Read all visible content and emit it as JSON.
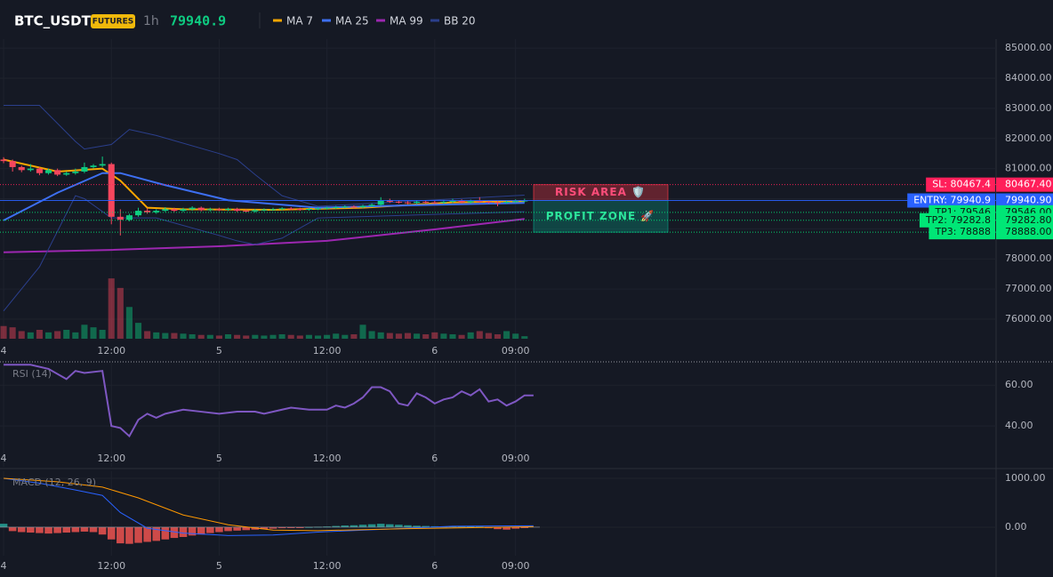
{
  "header": {
    "symbol": "BTC_USDT",
    "badge": "FUTURES",
    "interval": "1h",
    "price": "79940.9"
  },
  "chart_data": [
    {
      "type": "candlestick",
      "x": [
        0,
        1,
        2,
        3,
        4,
        5,
        6,
        7,
        8,
        9,
        10,
        11,
        12,
        13,
        14,
        15,
        16,
        17,
        18,
        19,
        20,
        21,
        22,
        23,
        24,
        25,
        26,
        27,
        28,
        29,
        30,
        31,
        32,
        33,
        34,
        35,
        36,
        37,
        38,
        39,
        40,
        41,
        42,
        43,
        44,
        45,
        46,
        47,
        48,
        49,
        50,
        51,
        52,
        53,
        54,
        55,
        56,
        57,
        58
      ],
      "open": [
        81300,
        81250,
        81050,
        80950,
        81000,
        80850,
        80950,
        80800,
        80850,
        80900,
        81050,
        81100,
        81150,
        79400,
        79300,
        79450,
        79600,
        79550,
        79600,
        79650,
        79600,
        79650,
        79700,
        79620,
        79650,
        79630,
        79660,
        79600,
        79580,
        79620,
        79640,
        79650,
        79680,
        79660,
        79640,
        79660,
        79680,
        79700,
        79720,
        79740,
        79720,
        79760,
        79800,
        79950,
        79900,
        79880,
        79860,
        79900,
        79880,
        79870,
        79900,
        79930,
        79880,
        79920,
        79900,
        79880,
        79870,
        79900,
        79920
      ],
      "high": [
        81380,
        81300,
        81100,
        81150,
        81050,
        81000,
        81000,
        80900,
        81000,
        81200,
        81150,
        81400,
        81200,
        79650,
        79500,
        79700,
        79680,
        79650,
        79720,
        79700,
        79700,
        79750,
        79740,
        79700,
        79700,
        79700,
        79700,
        79650,
        79660,
        79680,
        79700,
        79720,
        79720,
        79700,
        79700,
        79720,
        79740,
        79760,
        79780,
        79780,
        79800,
        79850,
        80050,
        80000,
        79950,
        79920,
        79950,
        79940,
        79930,
        79960,
        80000,
        79980,
        79970,
        80050,
        79950,
        79940,
        79950,
        79980,
        80000
      ],
      "low": [
        81180,
        80900,
        80880,
        80900,
        80780,
        80800,
        80750,
        80760,
        80800,
        80850,
        81000,
        81050,
        79150,
        78780,
        79250,
        79400,
        79500,
        79500,
        79560,
        79560,
        79560,
        79600,
        79580,
        79580,
        79590,
        79590,
        79560,
        79540,
        79540,
        79580,
        79600,
        79610,
        79620,
        79600,
        79600,
        79620,
        79640,
        79660,
        79680,
        79680,
        79680,
        79720,
        79760,
        79860,
        79840,
        79820,
        79820,
        79840,
        79830,
        79830,
        79860,
        79840,
        79840,
        79860,
        79840,
        79750,
        79830,
        79860,
        79880
      ],
      "close": [
        81250,
        81050,
        80950,
        81000,
        80850,
        80950,
        80800,
        80850,
        80900,
        81050,
        81100,
        81150,
        79400,
        79300,
        79450,
        79600,
        79550,
        79600,
        79650,
        79600,
        79650,
        79700,
        79620,
        79650,
        79630,
        79660,
        79600,
        79580,
        79620,
        79640,
        79650,
        79680,
        79660,
        79640,
        79660,
        79680,
        79700,
        79720,
        79740,
        79720,
        79760,
        79800,
        79950,
        79900,
        79880,
        79860,
        79900,
        79880,
        79870,
        79900,
        79930,
        79880,
        79920,
        79900,
        79880,
        79870,
        79900,
        79920,
        79940.9
      ],
      "up_color": "#0ecb81",
      "down_color": "#f6465d",
      "volume": [
        20,
        18,
        12,
        10,
        14,
        10,
        12,
        14,
        10,
        22,
        18,
        14,
        95,
        80,
        50,
        25,
        12,
        10,
        9,
        9,
        8,
        7,
        6,
        6,
        5,
        7,
        6,
        5,
        6,
        5,
        6,
        7,
        6,
        5,
        6,
        5,
        6,
        8,
        6,
        7,
        22,
        12,
        10,
        9,
        8,
        9,
        8,
        7,
        10,
        8,
        7,
        6,
        10,
        12,
        9,
        7,
        12,
        8,
        4
      ],
      "volume_ylim": [
        0,
        140
      ],
      "xlim": [
        -0.4,
        110.5
      ],
      "xticks": [
        {
          "value": 0,
          "label": "4"
        },
        {
          "value": 12,
          "label": "12:00"
        },
        {
          "value": 24,
          "label": "5"
        },
        {
          "value": 36,
          "label": "12:00"
        },
        {
          "value": 48,
          "label": "6"
        },
        {
          "value": 57,
          "label": "09:00"
        }
      ],
      "ylim": [
        75350,
        85300
      ],
      "yticks": [
        {
          "value": 76000,
          "label": "76000.00"
        },
        {
          "value": 77000,
          "label": "77000.00"
        },
        {
          "value": 78000,
          "label": "78000.00"
        },
        {
          "value": 79000,
          "label": "79000.00"
        },
        {
          "value": 80000,
          "label": "80000.00"
        },
        {
          "value": 81000,
          "label": "81000.00"
        },
        {
          "value": 82000,
          "label": "82000.00"
        },
        {
          "value": 83000,
          "label": "83000.00"
        },
        {
          "value": 84000,
          "label": "84000.00"
        },
        {
          "value": 85000,
          "label": "85000.00"
        }
      ],
      "grid": true,
      "lines": [
        {
          "name": "MA 7",
          "color": "#f7a600",
          "x": [
            0,
            6,
            11,
            13,
            16,
            20,
            30,
            40,
            50,
            58
          ],
          "values": [
            81300,
            80900,
            81000,
            80600,
            79700,
            79650,
            79630,
            79700,
            79880,
            79920
          ]
        },
        {
          "name": "MA 25",
          "color": "#3d6ff2",
          "x": [
            0,
            6,
            11,
            13,
            18,
            25,
            35,
            45,
            58
          ],
          "values": [
            79280,
            80200,
            80850,
            80850,
            80450,
            79950,
            79700,
            79780,
            79860
          ]
        },
        {
          "name": "MA 99",
          "color": "#9c27b0",
          "x": [
            0,
            12,
            24,
            36,
            48,
            58
          ],
          "values": [
            78220,
            78300,
            78420,
            78600,
            78980,
            79330
          ]
        },
        {
          "name": "BB 20",
          "color": "#2b3f8c",
          "x": [
            0,
            4,
            8,
            9,
            12,
            14,
            17,
            24,
            26,
            28,
            31,
            35,
            58
          ],
          "values": [
            83100,
            83100,
            81900,
            81650,
            81800,
            82300,
            82100,
            81500,
            81300,
            80800,
            80100,
            79750,
            80120
          ],
          "lower": [
            76270,
            77740,
            80100,
            80000,
            79360,
            79360,
            79360,
            78780,
            78600,
            78480,
            78690,
            79360,
            79570
          ]
        }
      ],
      "levels": [
        {
          "label": "SL: 80467.4",
          "value": 80467.4,
          "axis_label": "80467.40",
          "color": "#ff1f5a",
          "style": "dotted"
        },
        {
          "label": "ENTRY: 79940.9",
          "value": 79940.9,
          "axis_label": "79940.90",
          "color": "#2962ff",
          "style": "solid"
        },
        {
          "label": "TP1: 79546",
          "value": 79546,
          "axis_label": "79546.00",
          "color": "#00e676",
          "style": "dotted"
        },
        {
          "label": "TP2: 79282.8",
          "value": 79282.8,
          "axis_label": "79282.80",
          "color": "#00e676",
          "style": "dotted"
        },
        {
          "label": "TP3: 78888",
          "value": 78888,
          "axis_label": "78888.00",
          "color": "#00e676",
          "style": "dotted"
        }
      ],
      "zones": [
        {
          "label": "RISK AREA 🛡️",
          "from": 80467.4,
          "to": 79940.9,
          "color": "#f23645",
          "text_color": "#ff4d7a"
        },
        {
          "label": "PROFIT ZONE 🚀",
          "from": 79940.9,
          "to": 78888,
          "color": "#089981",
          "text_color": "#2ee59d"
        }
      ]
    },
    {
      "type": "line",
      "title": "RSI (14)",
      "color": "#7e57c2",
      "x": [
        0,
        3,
        5,
        7,
        8,
        9,
        11,
        12,
        13,
        14,
        15,
        16,
        17,
        18,
        20,
        22,
        24,
        26,
        28,
        29,
        31,
        32,
        34,
        36,
        37,
        38,
        39,
        40,
        41,
        42,
        43,
        44,
        45,
        46,
        47,
        48,
        49,
        50,
        51,
        52,
        53,
        54,
        55,
        56,
        57,
        58,
        59
      ],
      "values": [
        70,
        70,
        68,
        63,
        67,
        66,
        67,
        40,
        39,
        35,
        43,
        46,
        44,
        46,
        48,
        47,
        46,
        47,
        47,
        46,
        48,
        49,
        48,
        48,
        50,
        49,
        51,
        54,
        59,
        59,
        57,
        51,
        50,
        56,
        54,
        51,
        53,
        54,
        57,
        55,
        58,
        52,
        53,
        50,
        52,
        55,
        55
      ],
      "xlim": [
        -0.4,
        110.5
      ],
      "xticks": [
        {
          "value": 0,
          "label": "4"
        },
        {
          "value": 12,
          "label": "12:00"
        },
        {
          "value": 24,
          "label": "5"
        },
        {
          "value": 36,
          "label": "12:00"
        },
        {
          "value": 48,
          "label": "6"
        },
        {
          "value": 57,
          "label": "09:00"
        }
      ],
      "ylim": [
        20,
        71
      ],
      "yticks": [
        {
          "value": 40,
          "label": "40.00"
        },
        {
          "value": 60,
          "label": "60.00"
        }
      ],
      "grid": true
    },
    {
      "type": "macd",
      "title": "MACD (12, 26, 9)",
      "x": [
        0,
        1,
        2,
        3,
        4,
        5,
        6,
        7,
        8,
        9,
        10,
        11,
        12,
        13,
        14,
        15,
        16,
        17,
        18,
        19,
        20,
        21,
        22,
        23,
        24,
        25,
        26,
        27,
        28,
        29,
        30,
        31,
        32,
        33,
        34,
        35,
        36,
        37,
        38,
        39,
        40,
        41,
        42,
        43,
        44,
        45,
        46,
        47,
        48,
        49,
        50,
        51,
        52,
        53,
        54,
        55,
        56,
        57,
        58
      ],
      "histogram": [
        70,
        -80,
        -100,
        -110,
        -120,
        -130,
        -120,
        -110,
        -100,
        -90,
        -100,
        -150,
        -250,
        -330,
        -340,
        -320,
        -300,
        -280,
        -250,
        -220,
        -200,
        -170,
        -150,
        -120,
        -100,
        -80,
        -70,
        -60,
        -50,
        -40,
        -30,
        -20,
        -10,
        -5,
        5,
        10,
        15,
        25,
        35,
        40,
        50,
        60,
        70,
        60,
        50,
        40,
        30,
        25,
        20,
        15,
        20,
        25,
        20,
        15,
        -20,
        -40,
        -50,
        -30,
        -10
      ],
      "up_color": "#26a69a",
      "down_color": "#ef5350",
      "lines": [
        {
          "color": "#2962ff",
          "x": [
            0,
            4,
            8,
            11,
            13,
            16,
            20,
            25,
            30,
            35,
            45,
            50,
            59
          ],
          "values": [
            1000,
            900,
            760,
            650,
            300,
            -20,
            -120,
            -170,
            -160,
            -100,
            -20,
            20,
            30
          ]
        },
        {
          "color": "#ff9800",
          "x": [
            0,
            6,
            11,
            15,
            20,
            25,
            30,
            35,
            45,
            59
          ],
          "values": [
            1000,
            930,
            820,
            600,
            250,
            50,
            -60,
            -70,
            -30,
            10
          ]
        }
      ],
      "xlim": [
        -0.4,
        110.5
      ],
      "xticks": [
        {
          "value": 0,
          "label": "4"
        },
        {
          "value": 12,
          "label": "12:00"
        },
        {
          "value": 24,
          "label": "5"
        },
        {
          "value": 36,
          "label": "12:00"
        },
        {
          "value": 48,
          "label": "6"
        },
        {
          "value": 57,
          "label": "09:00"
        }
      ],
      "ylim": [
        -582,
        1145
      ],
      "yticks": [
        {
          "value": 0,
          "label": "0.00"
        },
        {
          "value": 1000,
          "label": "1000.00"
        }
      ],
      "grid": true
    }
  ]
}
